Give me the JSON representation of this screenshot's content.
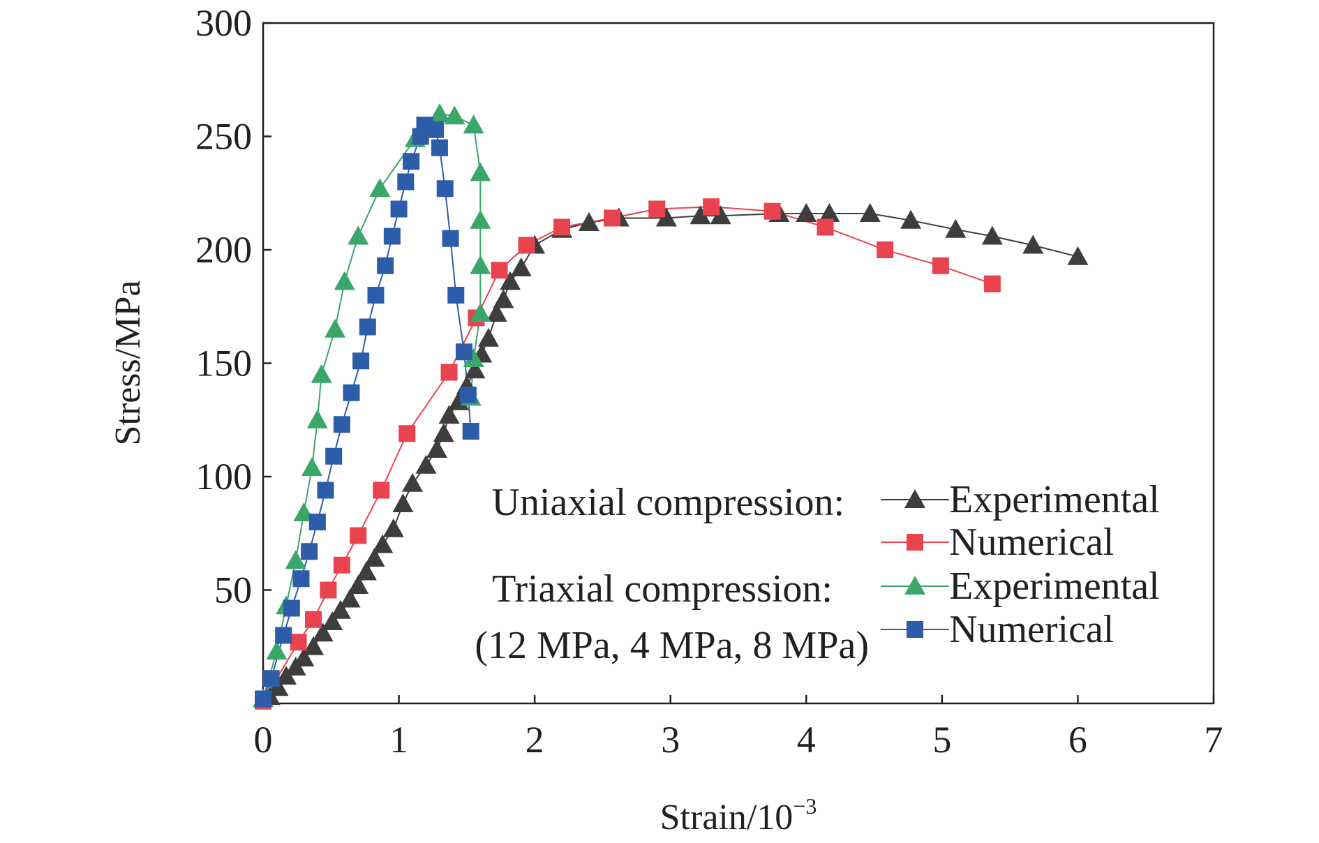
{
  "chart_data": {
    "type": "line",
    "xlabel": "Strain/10",
    "xlabel_sup": "−3",
    "ylabel": "Stress/MPa",
    "xlim": [
      0,
      7
    ],
    "ylim": [
      0,
      300
    ],
    "xticks": [
      "0",
      "1",
      "2",
      "3",
      "4",
      "5",
      "6",
      "7"
    ],
    "yticks": [
      "50",
      "100",
      "150",
      "200",
      "250",
      "300"
    ],
    "grid": false,
    "legend_position": "bottom-right",
    "legend_groups": [
      {
        "label": "Uniaxial compression:",
        "entries": [
          "Experimental",
          "Numerical"
        ]
      },
      {
        "label": "Triaxial compression:",
        "sublabel": "(12 MPa, 4 MPa, 8 MPa)",
        "entries": [
          "Experimental",
          "Numerical"
        ]
      }
    ],
    "series": [
      {
        "name": "Experimental",
        "group": "Uniaxial compression:",
        "marker": "triangle",
        "color": "#3d3d3d",
        "points": [
          [
            0.05,
            3
          ],
          [
            0.11,
            7
          ],
          [
            0.17,
            12
          ],
          [
            0.24,
            16
          ],
          [
            0.3,
            20
          ],
          [
            0.37,
            25
          ],
          [
            0.44,
            31
          ],
          [
            0.51,
            36
          ],
          [
            0.57,
            41
          ],
          [
            0.64,
            46
          ],
          [
            0.7,
            52
          ],
          [
            0.76,
            58
          ],
          [
            0.82,
            64
          ],
          [
            0.88,
            70
          ],
          [
            0.96,
            77
          ],
          [
            1.03,
            88
          ],
          [
            1.1,
            97
          ],
          [
            1.2,
            105
          ],
          [
            1.28,
            112
          ],
          [
            1.33,
            119
          ],
          [
            1.37,
            127
          ],
          [
            1.44,
            133
          ],
          [
            1.5,
            140
          ],
          [
            1.56,
            147
          ],
          [
            1.61,
            154
          ],
          [
            1.66,
            161
          ],
          [
            1.72,
            172
          ],
          [
            1.77,
            178
          ],
          [
            1.82,
            186
          ],
          [
            1.9,
            192
          ],
          [
            2.0,
            202
          ],
          [
            2.2,
            209
          ],
          [
            2.4,
            212
          ],
          [
            2.62,
            214
          ],
          [
            2.97,
            214
          ],
          [
            3.22,
            215
          ],
          [
            3.37,
            215
          ],
          [
            3.8,
            216
          ],
          [
            4.0,
            216
          ],
          [
            4.17,
            216
          ],
          [
            4.47,
            216
          ],
          [
            4.77,
            213
          ],
          [
            5.1,
            209
          ],
          [
            5.37,
            206
          ],
          [
            5.67,
            202
          ],
          [
            6.0,
            197
          ]
        ]
      },
      {
        "name": "Numerical",
        "group": "Uniaxial compression:",
        "marker": "square",
        "color": "#e8434f",
        "points": [
          [
            0.0,
            1
          ],
          [
            0.26,
            27
          ],
          [
            0.37,
            37
          ],
          [
            0.48,
            50
          ],
          [
            0.58,
            61
          ],
          [
            0.7,
            74
          ],
          [
            0.87,
            94
          ],
          [
            1.06,
            119
          ],
          [
            1.37,
            146
          ],
          [
            1.57,
            170
          ],
          [
            1.74,
            191
          ],
          [
            1.94,
            202
          ],
          [
            2.2,
            210
          ],
          [
            2.57,
            214
          ],
          [
            2.9,
            218
          ],
          [
            3.3,
            219
          ],
          [
            3.75,
            217
          ],
          [
            4.14,
            210
          ],
          [
            4.58,
            200
          ],
          [
            4.99,
            193
          ],
          [
            5.37,
            185
          ]
        ]
      },
      {
        "name": "Experimental",
        "group": "Triaxial compression:",
        "marker": "triangle",
        "color": "#3aa66a",
        "points": [
          [
            0.0,
            2
          ],
          [
            0.1,
            23
          ],
          [
            0.17,
            43
          ],
          [
            0.24,
            63
          ],
          [
            0.3,
            84
          ],
          [
            0.36,
            104
          ],
          [
            0.4,
            125
          ],
          [
            0.43,
            145
          ],
          [
            0.53,
            165
          ],
          [
            0.6,
            186
          ],
          [
            0.7,
            206
          ],
          [
            0.86,
            227
          ],
          [
            1.12,
            249
          ],
          [
            1.3,
            260
          ],
          [
            1.41,
            259
          ],
          [
            1.55,
            255
          ],
          [
            1.6,
            234
          ],
          [
            1.6,
            213
          ],
          [
            1.6,
            193
          ],
          [
            1.6,
            172
          ],
          [
            1.55,
            152
          ],
          [
            1.53,
            135
          ]
        ]
      },
      {
        "name": "Numerical",
        "group": "Triaxial compression:",
        "marker": "square",
        "color": "#2d5da8",
        "points": [
          [
            0.0,
            2
          ],
          [
            0.06,
            11
          ],
          [
            0.15,
            30
          ],
          [
            0.21,
            42
          ],
          [
            0.28,
            55
          ],
          [
            0.34,
            67
          ],
          [
            0.4,
            80
          ],
          [
            0.46,
            94
          ],
          [
            0.52,
            109
          ],
          [
            0.58,
            123
          ],
          [
            0.65,
            137
          ],
          [
            0.72,
            151
          ],
          [
            0.77,
            166
          ],
          [
            0.83,
            180
          ],
          [
            0.9,
            193
          ],
          [
            0.95,
            206
          ],
          [
            1.0,
            218
          ],
          [
            1.05,
            230
          ],
          [
            1.09,
            239
          ],
          [
            1.16,
            250
          ],
          [
            1.19,
            255
          ],
          [
            1.27,
            253
          ],
          [
            1.3,
            245
          ],
          [
            1.34,
            227
          ],
          [
            1.38,
            205
          ],
          [
            1.42,
            180
          ],
          [
            1.48,
            155
          ],
          [
            1.51,
            136
          ],
          [
            1.53,
            120
          ]
        ]
      }
    ]
  }
}
